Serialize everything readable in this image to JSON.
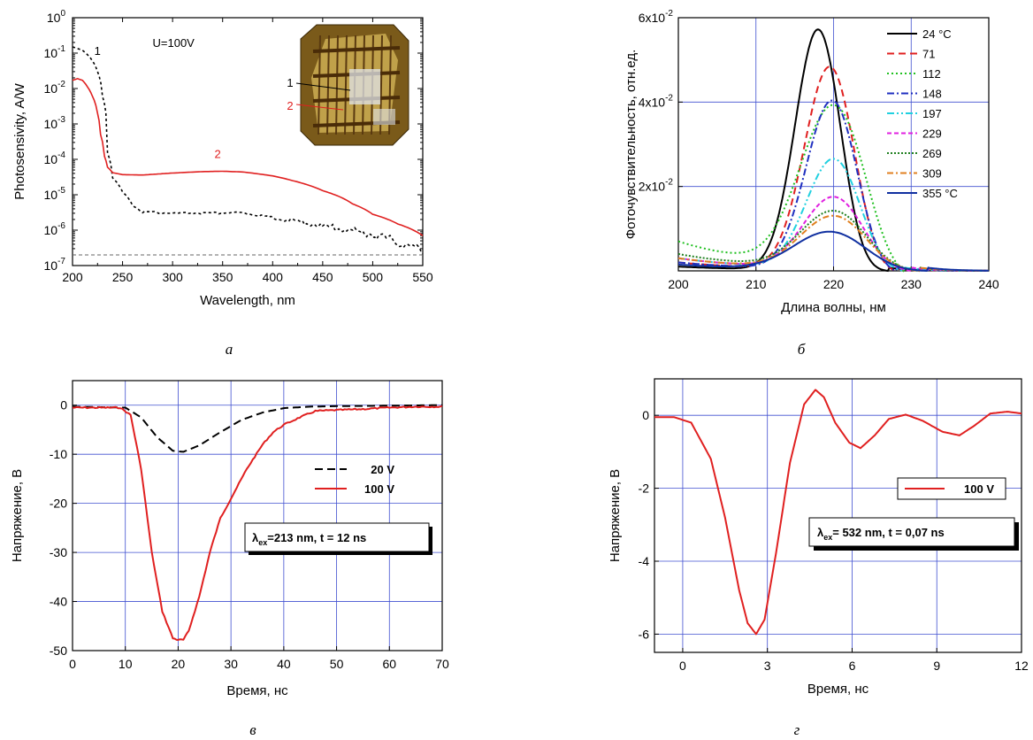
{
  "chart_data": [
    {
      "id": "a",
      "type": "line",
      "panel_letter": "а",
      "xlabel": "Wavelength, nm",
      "ylabel": "Photosensivity, A/W",
      "yscale": "log",
      "xlim": [
        200,
        550
      ],
      "ylim": [
        1e-07,
        1
      ],
      "x_ticks": [
        "200",
        "250",
        "300",
        "350",
        "400",
        "450",
        "500",
        "550"
      ],
      "y_ticks": [
        {
          "base": "10",
          "exp": "-7"
        },
        {
          "base": "10",
          "exp": "-6"
        },
        {
          "base": "10",
          "exp": "-5"
        },
        {
          "base": "10",
          "exp": "-4"
        },
        {
          "base": "10",
          "exp": "-3"
        },
        {
          "base": "10",
          "exp": "-2"
        },
        {
          "base": "10",
          "exp": "-1"
        },
        {
          "base": "10",
          "exp": "0"
        }
      ],
      "annotation": "U=100V",
      "inset_labels": [
        "1",
        "2"
      ],
      "series": [
        {
          "label": "1",
          "color": "#000000",
          "dash": "3,3",
          "x": [
            200,
            210,
            220,
            225,
            230,
            235,
            240,
            250,
            260,
            270,
            300,
            350,
            365,
            400,
            450,
            500,
            525,
            550
          ],
          "y": [
            0.15,
            0.12,
            0.06,
            0.03,
            0.006,
            0.00015,
            3e-05,
            1.2e-05,
            5e-06,
            3.3e-06,
            3e-06,
            3e-06,
            3.2e-06,
            2.2e-06,
            1.3e-06,
            7.5e-07,
            4.5e-07,
            2.4e-07
          ]
        },
        {
          "label": "2",
          "color": "#e02020",
          "dash": "",
          "x": [
            200,
            205,
            210,
            215,
            220,
            225,
            228,
            232,
            235,
            240,
            250,
            270,
            300,
            330,
            350,
            370,
            400,
            420,
            450,
            480,
            500,
            525,
            550
          ],
          "y": [
            0.017,
            0.019,
            0.017,
            0.011,
            0.006,
            0.002,
            0.0005,
            0.00012,
            6e-05,
            4.2e-05,
            3.7e-05,
            3.6e-05,
            4.1e-05,
            4.5e-05,
            4.6e-05,
            4.4e-05,
            3.4e-05,
            2.5e-05,
            1.3e-05,
            5.5e-06,
            2.8e-06,
            1.5e-06,
            7e-07
          ]
        }
      ],
      "reference_line": {
        "y": 2e-07,
        "color": "#666666"
      }
    },
    {
      "id": "b",
      "type": "line",
      "panel_letter": "б",
      "xlabel": "Длина волны, нм",
      "ylabel": "Фоточувствительность, отн.ед.",
      "xlim": [
        200,
        240
      ],
      "ylim": [
        0,
        0.06
      ],
      "x_ticks": [
        "200",
        "210",
        "220",
        "230",
        "240"
      ],
      "y_ticks": [
        {
          "value": 0.02,
          "mant": "2x10",
          "exp": "-2"
        },
        {
          "value": 0.04,
          "mant": "4x10",
          "exp": "-2"
        },
        {
          "value": 0.06,
          "mant": "6x10",
          "exp": "-2"
        }
      ],
      "grid": true,
      "legend_position": "top-right",
      "series": [
        {
          "name": "24 °C",
          "color": "#000000",
          "dash": "",
          "width": 2,
          "peak": 0.057,
          "center": 218,
          "width_nm": 3.8,
          "base": 0.001,
          "cut": 227
        },
        {
          "name": "71",
          "color": "#e02020",
          "dash": "8,5",
          "width": 2,
          "peak": 0.048,
          "center": 219.5,
          "width_nm": 4.2,
          "base": 0.002,
          "cut": 228
        },
        {
          "name": "112",
          "color": "#20c020",
          "dash": "2,3",
          "width": 2,
          "peak": 0.038,
          "center": 220,
          "width_nm": 5.5,
          "base": 0.007,
          "cut": 229
        },
        {
          "name": "148",
          "color": "#2030c0",
          "dash": "8,3,2,3",
          "width": 2,
          "peak": 0.04,
          "center": 219.8,
          "width_nm": 4.3,
          "base": 0.002,
          "cut": 228
        },
        {
          "name": "197",
          "color": "#20d0e0",
          "dash": "8,3,2,3,2,3",
          "width": 2,
          "peak": 0.026,
          "center": 220,
          "width_nm": 4.5,
          "base": 0.003,
          "cut": 229
        },
        {
          "name": "229",
          "color": "#e020e0",
          "dash": "5,3",
          "width": 2,
          "peak": 0.017,
          "center": 220,
          "width_nm": 5,
          "base": 0.003,
          "cut": 230
        },
        {
          "name": "269",
          "color": "#208020",
          "dash": "2,2",
          "width": 2,
          "peak": 0.0135,
          "center": 220,
          "width_nm": 5.5,
          "base": 0.004,
          "cut": 231
        },
        {
          "name": "309",
          "color": "#e08020",
          "dash": "7,3,2,3",
          "width": 2,
          "peak": 0.0125,
          "center": 220,
          "width_nm": 5.5,
          "base": 0.003,
          "cut": 231
        },
        {
          "name": "355 °C",
          "color": "#1030a0",
          "dash": "",
          "width": 2,
          "peak": 0.009,
          "center": 219.5,
          "width_nm": 6,
          "base": 0.0015,
          "cut": 232
        }
      ]
    },
    {
      "id": "v",
      "type": "line",
      "panel_letter": "в",
      "xlabel": "Время, нс",
      "ylabel": "Напряжение, В",
      "xlim": [
        0,
        70
      ],
      "ylim": [
        -50,
        5
      ],
      "x_ticks": [
        "0",
        "10",
        "20",
        "30",
        "40",
        "50",
        "60",
        "70"
      ],
      "y_ticks": [
        "0",
        "-10",
        "-20",
        "-30",
        "-40",
        "-50"
      ],
      "grid": true,
      "legend_position": "right",
      "series": [
        {
          "name": "20 V",
          "color": "#000000",
          "dash": "9,5",
          "x": [
            0,
            10,
            13,
            16,
            19,
            21,
            24,
            28,
            32,
            36,
            40,
            45,
            50,
            60,
            70
          ],
          "y": [
            -0.3,
            -0.5,
            -2.5,
            -6.5,
            -9.3,
            -9.5,
            -8.2,
            -5.5,
            -3,
            -1.5,
            -0.6,
            -0.3,
            -0.2,
            -0.1,
            0
          ]
        },
        {
          "name": "100 V",
          "color": "#e02020",
          "dash": "",
          "x": [
            0,
            9,
            11,
            13,
            15,
            17,
            19,
            20,
            21,
            22,
            24,
            26,
            28,
            30,
            33,
            36,
            38,
            40,
            43,
            46,
            50,
            55,
            60,
            65,
            70
          ],
          "y": [
            -0.5,
            -0.5,
            -2,
            -13,
            -30,
            -42,
            -47.5,
            -47.8,
            -47.8,
            -46,
            -39,
            -30,
            -23,
            -19,
            -13,
            -8,
            -5.5,
            -4,
            -2.5,
            -1.2,
            -1,
            -0.8,
            -0.5,
            -0.3,
            -0.3
          ]
        }
      ],
      "annotation": {
        "lambda": "λ",
        "sub": "ex",
        "text": "=213 nm, t = 12 ns"
      }
    },
    {
      "id": "g",
      "type": "line",
      "panel_letter": "г",
      "xlabel": "Время, нс",
      "ylabel": "Напряжение, В",
      "xlim": [
        -1,
        12
      ],
      "ylim": [
        -6.5,
        1
      ],
      "x_ticks": [
        "0",
        "3",
        "6",
        "9",
        "12"
      ],
      "y_ticks": [
        "0",
        "-2",
        "-4",
        "-6"
      ],
      "grid": true,
      "legend_position": "right",
      "series": [
        {
          "name": "100 V",
          "color": "#e02020",
          "dash": "",
          "x": [
            -1,
            -0.3,
            0.3,
            1,
            1.5,
            2,
            2.3,
            2.6,
            2.9,
            3.3,
            3.8,
            4.3,
            4.7,
            5,
            5.4,
            5.9,
            6.3,
            6.8,
            7.3,
            7.9,
            8.5,
            9.2,
            9.8,
            10.3,
            10.9,
            11.5,
            12
          ],
          "y": [
            -0.05,
            -0.05,
            -0.2,
            -1.2,
            -2.8,
            -4.8,
            -5.7,
            -6,
            -5.6,
            -3.8,
            -1.3,
            0.3,
            0.7,
            0.5,
            -0.2,
            -0.75,
            -0.9,
            -0.55,
            -0.1,
            0.02,
            -0.15,
            -0.45,
            -0.55,
            -0.3,
            0.05,
            0.1,
            0.05
          ]
        }
      ],
      "annotation": {
        "lambda": "λ",
        "sub": "ex",
        "text": "= 532 nm, t = 0,07 ns"
      }
    }
  ]
}
